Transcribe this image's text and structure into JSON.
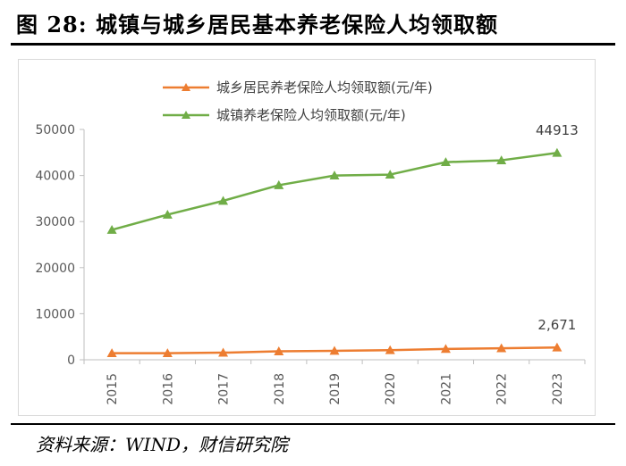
{
  "figure": {
    "title": "图 28:  城镇与城乡居民基本养老保险人均领取额",
    "source": "资料来源：WIND，财信研究院"
  },
  "chart_data": {
    "type": "line",
    "title": "城镇与城乡居民基本养老保险人均领取额",
    "x": [
      "2015",
      "2016",
      "2017",
      "2018",
      "2019",
      "2020",
      "2021",
      "2022",
      "2023"
    ],
    "ylim": [
      0,
      50000
    ],
    "yticks": [
      "0",
      "10000",
      "20000",
      "30000",
      "40000",
      "50000"
    ],
    "xlabel": "",
    "ylabel": "",
    "grid": false,
    "legend_position": "top",
    "series": [
      {
        "name": "城乡居民养老保险人均领取额(元/年)",
        "color": "#ED7D31",
        "marker": "triangle",
        "values": [
          1430,
          1430,
          1540,
          1830,
          1940,
          2090,
          2360,
          2490,
          2671
        ],
        "end_label": "2,671"
      },
      {
        "name": "城镇养老保险人均领取额(元/年)",
        "color": "#70AD47",
        "marker": "triangle",
        "values": [
          28200,
          31500,
          34500,
          37900,
          40000,
          40200,
          42900,
          43300,
          44913
        ],
        "end_label": "44913"
      }
    ]
  }
}
